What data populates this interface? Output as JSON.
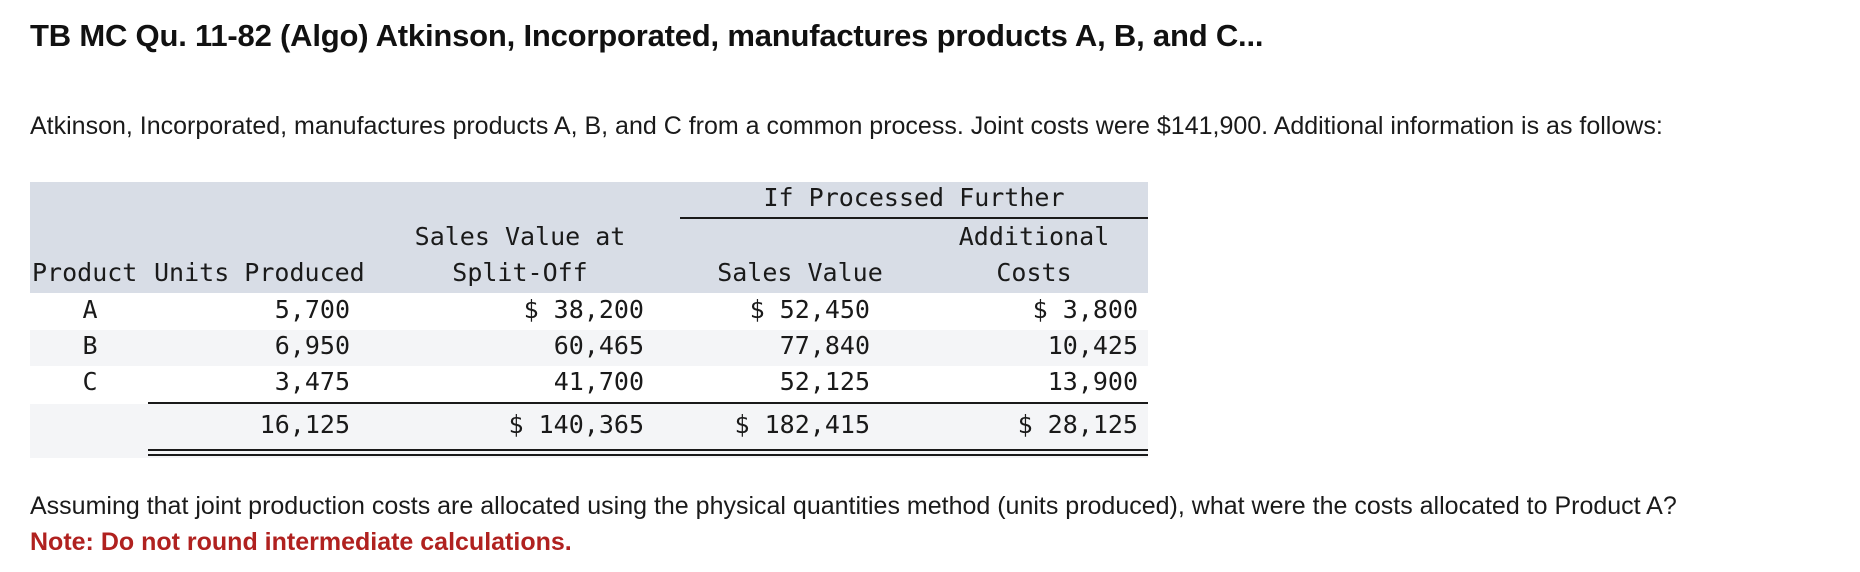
{
  "title": "TB MC Qu. 11-82 (Algo) Atkinson, Incorporated, manufactures products A, B, and C...",
  "intro": "Atkinson, Incorporated, manufactures products A, B, and C from a common process. Joint costs were $141,900. Additional information is as follows:",
  "table": {
    "group_header": "If Processed Further",
    "headers": {
      "product": "Product",
      "units": "Units Produced",
      "split_line1": "Sales Value at",
      "split_line2": "Split-Off",
      "sales_value": "Sales Value",
      "add_line1": "Additional",
      "add_line2": "Costs"
    },
    "rows": [
      {
        "product": "A",
        "units": "5,700",
        "split": "$ 38,200",
        "sales": "$ 52,450",
        "additional": "$ 3,800"
      },
      {
        "product": "B",
        "units": "6,950",
        "split": "60,465",
        "sales": "77,840",
        "additional": "10,425"
      },
      {
        "product": "C",
        "units": "3,475",
        "split": "41,700",
        "sales": "52,125",
        "additional": "13,900"
      }
    ],
    "totals": {
      "units": "16,125",
      "split": "$ 140,365",
      "sales": "$ 182,415",
      "additional": "$ 28,125"
    }
  },
  "question": "Assuming that joint production costs are allocated using the physical quantities method (units produced), what were the costs allocated to Product A?",
  "note": "Note: Do not round intermediate calculations.",
  "colors": {
    "note": "#b0211f",
    "header_bg": "#d8dde6",
    "stripe_bg": "#f4f5f7"
  }
}
